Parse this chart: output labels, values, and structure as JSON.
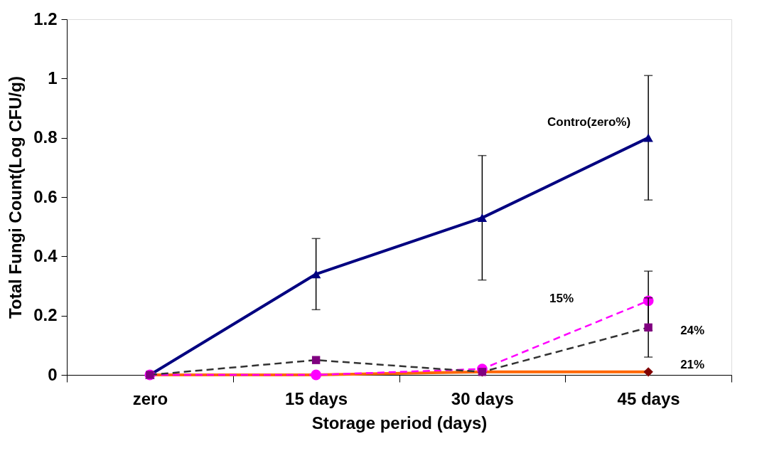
{
  "chart_data": {
    "type": "line",
    "xlabel": "Storage period (days)",
    "ylabel": "Total Fungi Count(Log CFU/g)",
    "categories": [
      "zero",
      "15 days",
      "30 days",
      "45 days"
    ],
    "ylim": [
      0,
      1.2
    ],
    "yticks": [
      0,
      0.2,
      0.4,
      0.6,
      0.8,
      1,
      1.2
    ],
    "grid": false,
    "series": [
      {
        "name": "Contro(zero%)",
        "color": "#000080",
        "colors": [
          "#000080",
          "#000080",
          "#000080",
          "#000080"
        ],
        "marker": "triangle",
        "line_style": "solid",
        "values": [
          0,
          0.34,
          0.53,
          0.8
        ],
        "errors": [
          null,
          0.12,
          0.21,
          0.21
        ]
      },
      {
        "name": "21%",
        "color": "#ff6600",
        "colors": [
          "#800000",
          "#800000",
          "#800000",
          "#800000"
        ],
        "marker": "diamond",
        "line_style": "solid",
        "values": [
          0,
          0,
          0.01,
          0.01
        ]
      },
      {
        "name": "15%",
        "color": "#ff00ff",
        "colors": [
          "#ff00ff",
          "#ff00ff",
          "#ff00ff",
          "#ff00ff"
        ],
        "marker": "circle",
        "line_style": "dashed",
        "values": [
          0,
          0,
          0.02,
          0.25
        ],
        "errors": [
          null,
          null,
          null,
          0.1
        ]
      },
      {
        "name": "24%",
        "color": "#333333",
        "colors": [
          "#800080",
          "#800080",
          "#800080",
          "#800080"
        ],
        "marker": "square",
        "line_style": "dashed",
        "values": [
          0,
          0.05,
          0.01,
          0.16
        ],
        "errors": [
          null,
          null,
          null,
          0.1
        ]
      }
    ]
  }
}
